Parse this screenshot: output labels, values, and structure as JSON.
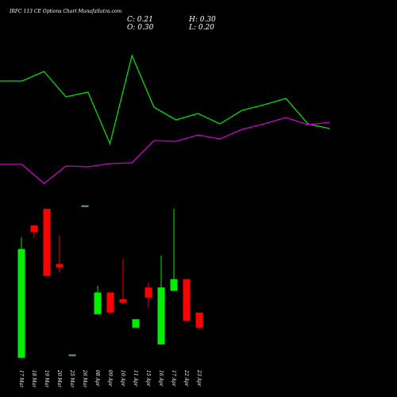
{
  "chart_data": [
    {
      "type": "candlestick",
      "title": "IRFC 113 CE Options Chart MunafaSutra.com",
      "ohlc_labels": {
        "close": "C: 0.21",
        "high": "H: 0.30",
        "open": "O: 0.30",
        "low": "L: 0.20"
      },
      "categories": [
        "17 Mar",
        "18 Mar",
        "19 Mar",
        "20 Mar",
        "25 Mar",
        "26 Mar",
        "08 Apr",
        "09 Apr",
        "10 Apr",
        "11 Apr",
        "15 Apr",
        "16 Apr",
        "17 Apr",
        "22 Apr",
        "23 Apr"
      ],
      "open": [
        0.03,
        0.82,
        0.92,
        0.59,
        0.05,
        0.94,
        0.29,
        0.42,
        0.38,
        0.21,
        0.45,
        0.11,
        0.43,
        0.5,
        0.3
      ],
      "high": [
        0.75,
        0.82,
        0.92,
        0.76,
        0.05,
        0.94,
        0.46,
        0.42,
        0.62,
        0.26,
        0.48,
        0.64,
        0.92,
        0.5,
        0.3
      ],
      "low": [
        0.03,
        0.75,
        0.52,
        0.54,
        0.05,
        0.94,
        0.29,
        0.29,
        0.35,
        0.21,
        0.33,
        0.11,
        0.43,
        0.25,
        0.2
      ],
      "close": [
        0.68,
        0.78,
        0.52,
        0.57,
        0.05,
        0.94,
        0.42,
        0.3,
        0.36,
        0.26,
        0.39,
        0.45,
        0.5,
        0.25,
        0.21
      ],
      "up_color": "#00ee00",
      "down_color": "#ff0000",
      "flat_color": "#66aa66",
      "ylim": [
        0,
        1
      ]
    },
    {
      "type": "line",
      "series": [
        {
          "color": "#00dd00",
          "values": [
            148,
            148,
            160,
            128,
            134,
            69,
            180,
            115,
            99,
            107,
            94,
            111,
            118,
            126,
            94,
            88
          ]
        },
        {
          "color": "#cc00cc",
          "values": [
            43,
            43,
            19,
            41,
            40,
            44,
            45,
            73,
            72,
            80,
            75,
            87,
            94,
            102,
            93,
            96
          ]
        }
      ],
      "ylim": [
        0,
        250
      ]
    }
  ]
}
